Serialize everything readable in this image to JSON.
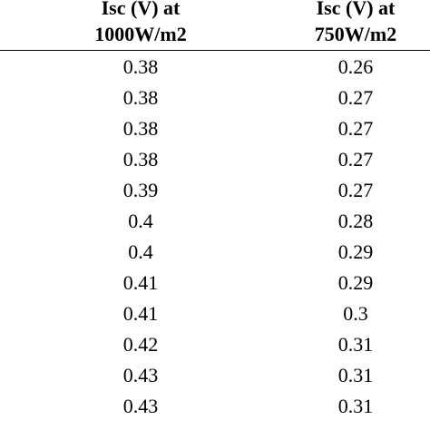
{
  "table": {
    "columns": [
      {
        "line1": "Isc (V) at",
        "line2": "1000W/m2"
      },
      {
        "line1": "Isc (V) at",
        "line2": "750W/m2"
      }
    ],
    "rows": [
      [
        "0.38",
        "0.26"
      ],
      [
        "0.38",
        "0.27"
      ],
      [
        "0.38",
        "0.27"
      ],
      [
        "0.38",
        "0.27"
      ],
      [
        "0.39",
        "0.27"
      ],
      [
        "0.4",
        "0.28"
      ],
      [
        "0.4",
        "0.29"
      ],
      [
        "0.41",
        "0.29"
      ],
      [
        "0.41",
        "0.3"
      ],
      [
        "0.42",
        "0.31"
      ],
      [
        "0.43",
        "0.31"
      ],
      [
        "0.43",
        "0.31"
      ]
    ]
  }
}
